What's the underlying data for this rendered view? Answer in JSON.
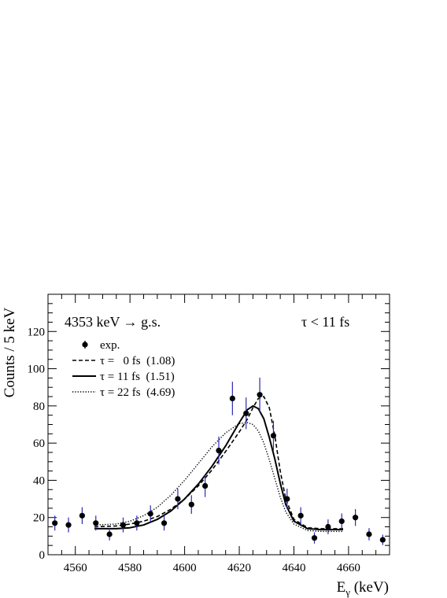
{
  "chart_data": {
    "type": "scatter",
    "title": "4353 keV → g.s.",
    "annotation": "τ < 11 fs",
    "xlabel": "Eγ (keV)",
    "ylabel": "Counts / 5 keV",
    "xlim": [
      4550,
      4675
    ],
    "ylim": [
      0,
      140
    ],
    "xticks": [
      4560,
      4580,
      4600,
      4620,
      4640,
      4660
    ],
    "yticks": [
      0,
      20,
      40,
      60,
      80,
      100,
      120
    ],
    "grid": false,
    "legend_position": "upper-left",
    "points": {
      "name": "exp.",
      "x": [
        4552.5,
        4557.5,
        4562.5,
        4567.5,
        4572.5,
        4577.5,
        4582.5,
        4587.5,
        4592.5,
        4597.5,
        4602.5,
        4607.5,
        4612.5,
        4617.5,
        4622.5,
        4627.5,
        4632.5,
        4637.5,
        4642.5,
        4647.5,
        4652.5,
        4657.5,
        4662.5,
        4667.5,
        4672.5
      ],
      "y": [
        17,
        16,
        21,
        17,
        11,
        16,
        17,
        22,
        17,
        30,
        27,
        37,
        56,
        84,
        76,
        86,
        64,
        30,
        21,
        9,
        15,
        18,
        20,
        11,
        8
      ],
      "yerr": [
        4,
        4,
        4.5,
        4,
        3.3,
        4,
        4,
        4.5,
        4,
        5.5,
        5,
        6,
        7.5,
        9,
        8.5,
        9.2,
        8,
        5.5,
        4.5,
        3,
        4,
        4.2,
        4.5,
        3.3,
        2.8
      ],
      "color": "#000000",
      "error_color": "#2b2bb0"
    },
    "series": [
      {
        "name": "0 fs",
        "legend_label": "τ =   0 fs  (1.08)",
        "style": "dashed",
        "x": [
          4567,
          4575,
          4580,
          4585,
          4590,
          4595,
          4600,
          4605,
          4610,
          4615,
          4620,
          4623,
          4625,
          4627,
          4629,
          4631,
          4633,
          4635,
          4637,
          4640,
          4645,
          4650,
          4658
        ],
        "y": [
          15,
          15.5,
          16.5,
          18,
          20.5,
          24.5,
          30,
          37,
          45.5,
          55.5,
          66,
          73,
          79,
          84,
          85,
          79,
          64,
          45,
          30,
          19,
          14.5,
          14,
          14
        ]
      },
      {
        "name": "11 fs",
        "legend_label": "τ = 11 fs  (1.51)",
        "style": "solid",
        "x": [
          4567,
          4575,
          4580,
          4585,
          4590,
          4595,
          4600,
          4605,
          4610,
          4615,
          4620,
          4623,
          4625,
          4627,
          4629,
          4631,
          4633,
          4635,
          4637,
          4640,
          4645,
          4650,
          4658
        ],
        "y": [
          14,
          14,
          14.5,
          16,
          19,
          23.5,
          30,
          38,
          47.5,
          58.5,
          71,
          78,
          80,
          78.5,
          73,
          63,
          51.5,
          38.5,
          27,
          18,
          14,
          13.5,
          13.5
        ]
      },
      {
        "name": "22 fs",
        "legend_label": "τ = 22 fs  (4.69)",
        "style": "dotted",
        "x": [
          4567,
          4575,
          4580,
          4585,
          4590,
          4595,
          4600,
          4605,
          4610,
          4615,
          4620,
          4623,
          4625,
          4627,
          4629,
          4631,
          4633,
          4635,
          4637,
          4640,
          4645,
          4650,
          4658
        ],
        "y": [
          16,
          16.5,
          18,
          21,
          25.5,
          32,
          40,
          49,
          58,
          65.5,
          70.5,
          71,
          70,
          66.5,
          60,
          51,
          41,
          31,
          23,
          16.5,
          13,
          12.5,
          12.5
        ]
      }
    ]
  }
}
